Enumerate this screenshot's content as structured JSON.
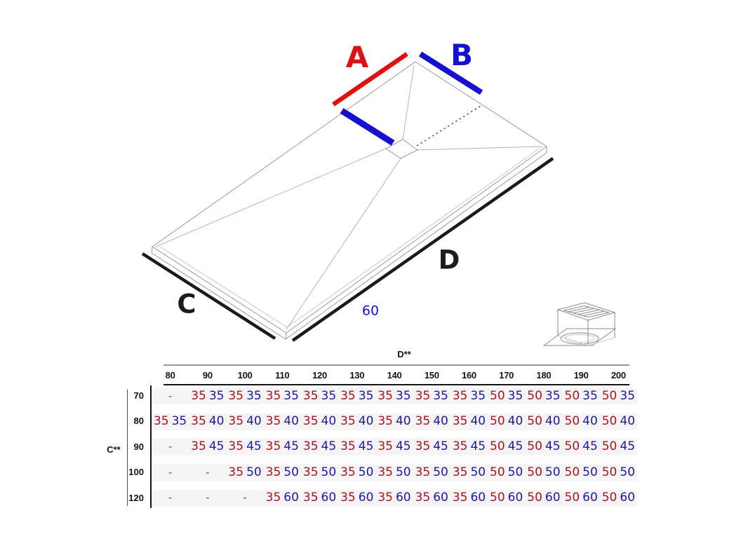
{
  "figure": {
    "labels": {
      "edge_a": "A",
      "edge_b": "B",
      "edge_c": "C",
      "edge_d": "D",
      "drain_offset": "60"
    },
    "colors": {
      "dimension_red": "#dd1111",
      "dimension_blue": "#1412d0",
      "edge_black": "#1a1a1a"
    },
    "icons": [
      "drain-icon"
    ]
  },
  "table": {
    "col_axis_label": "D**",
    "row_axis_label": "C**",
    "columns": [
      "80",
      "90",
      "100",
      "110",
      "120",
      "130",
      "140",
      "150",
      "160",
      "170",
      "180",
      "190",
      "200"
    ],
    "empty_cell": "-",
    "value_colors": {
      "first": "#a8141f",
      "second": "#1d17a3"
    },
    "rows": [
      {
        "label": "70",
        "cells": [
          "-",
          [
            "35",
            "35"
          ],
          [
            "35",
            "35"
          ],
          [
            "35",
            "35"
          ],
          [
            "35",
            "35"
          ],
          [
            "35",
            "35"
          ],
          [
            "35",
            "35"
          ],
          [
            "35",
            "35"
          ],
          [
            "35",
            "35"
          ],
          [
            "50",
            "35"
          ],
          [
            "50",
            "35"
          ],
          [
            "50",
            "35"
          ],
          [
            "50",
            "35"
          ]
        ]
      },
      {
        "label": "80",
        "cells": [
          [
            "35",
            "35"
          ],
          [
            "35",
            "40"
          ],
          [
            "35",
            "40"
          ],
          [
            "35",
            "40"
          ],
          [
            "35",
            "40"
          ],
          [
            "35",
            "40"
          ],
          [
            "35",
            "40"
          ],
          [
            "35",
            "40"
          ],
          [
            "35",
            "40"
          ],
          [
            "50",
            "40"
          ],
          [
            "50",
            "40"
          ],
          [
            "50",
            "40"
          ],
          [
            "50",
            "40"
          ]
        ]
      },
      {
        "label": "90",
        "cells": [
          "-",
          [
            "35",
            "45"
          ],
          [
            "35",
            "45"
          ],
          [
            "35",
            "45"
          ],
          [
            "35",
            "45"
          ],
          [
            "35",
            "45"
          ],
          [
            "35",
            "45"
          ],
          [
            "35",
            "45"
          ],
          [
            "35",
            "45"
          ],
          [
            "50",
            "45"
          ],
          [
            "50",
            "45"
          ],
          [
            "50",
            "45"
          ],
          [
            "50",
            "45"
          ]
        ]
      },
      {
        "label": "100",
        "cells": [
          "-",
          "-",
          [
            "35",
            "50"
          ],
          [
            "35",
            "50"
          ],
          [
            "35",
            "50"
          ],
          [
            "35",
            "50"
          ],
          [
            "35",
            "50"
          ],
          [
            "35",
            "50"
          ],
          [
            "35",
            "50"
          ],
          [
            "50",
            "50"
          ],
          [
            "50",
            "50"
          ],
          [
            "50",
            "50"
          ],
          [
            "50",
            "50"
          ]
        ]
      },
      {
        "label": "120",
        "cells": [
          "-",
          "-",
          "-",
          [
            "35",
            "60"
          ],
          [
            "35",
            "60"
          ],
          [
            "35",
            "60"
          ],
          [
            "35",
            "60"
          ],
          [
            "35",
            "60"
          ],
          [
            "35",
            "60"
          ],
          [
            "50",
            "60"
          ],
          [
            "50",
            "60"
          ],
          [
            "50",
            "60"
          ],
          [
            "50",
            "60"
          ]
        ]
      }
    ]
  }
}
